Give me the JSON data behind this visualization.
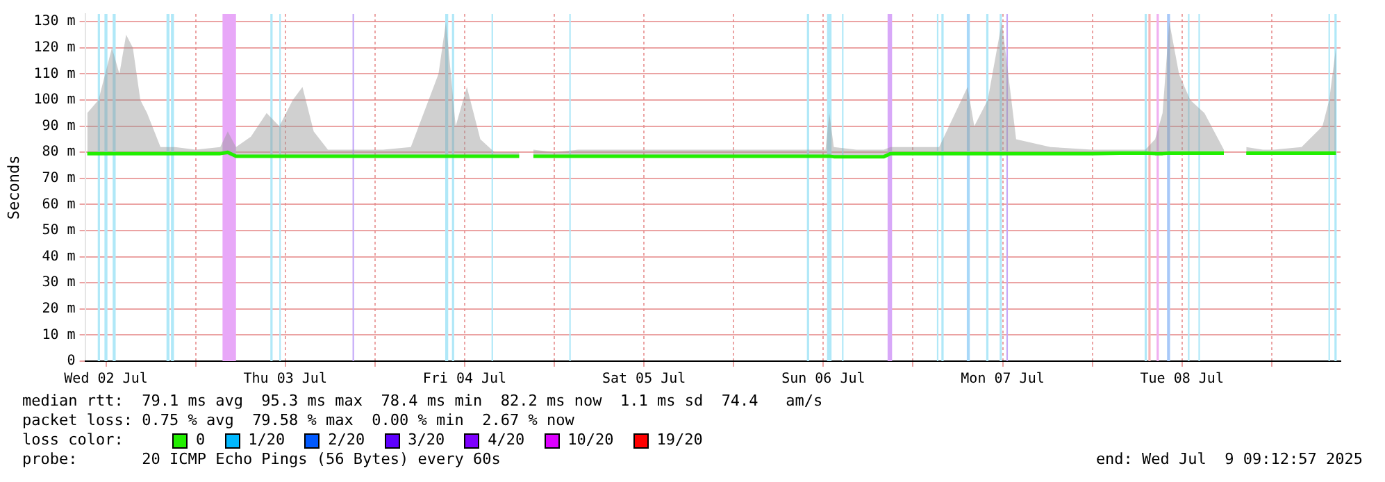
{
  "chart_data": {
    "type": "line",
    "ylabel": "Seconds",
    "legend_title": "loss color:",
    "legend": "bottom",
    "grid": true,
    "xlim": [
      "2025-07-02T09:13",
      "2025-07-09T09:13"
    ],
    "xticks": [
      {
        "value": "2025-07-02T12:00",
        "label": "Wed 02 Jul"
      },
      {
        "value": "2025-07-03T00:00",
        "label": null
      },
      {
        "value": "2025-07-03T12:00",
        "label": "Thu 03 Jul"
      },
      {
        "value": "2025-07-04T00:00",
        "label": null
      },
      {
        "value": "2025-07-04T12:00",
        "label": "Fri 04 Jul"
      },
      {
        "value": "2025-07-05T00:00",
        "label": null
      },
      {
        "value": "2025-07-05T12:00",
        "label": "Sat 05 Jul"
      },
      {
        "value": "2025-07-06T00:00",
        "label": null
      },
      {
        "value": "2025-07-06T12:00",
        "label": "Sun 06 Jul"
      },
      {
        "value": "2025-07-07T00:00",
        "label": null
      },
      {
        "value": "2025-07-07T12:00",
        "label": "Mon 07 Jul"
      },
      {
        "value": "2025-07-08T00:00",
        "label": null
      },
      {
        "value": "2025-07-08T12:00",
        "label": "Tue 08 Jul"
      },
      {
        "value": "2025-07-09T00:00",
        "label": null
      }
    ],
    "ylim": [
      0,
      133
    ],
    "yticks": [
      0,
      {
        "value": 10,
        "label": "10 m"
      },
      {
        "value": 20,
        "label": "20 m"
      },
      {
        "value": 30,
        "label": "30 m"
      },
      {
        "value": 40,
        "label": "40 m"
      },
      {
        "value": 50,
        "label": "50 m"
      },
      {
        "value": 60,
        "label": "60 m"
      },
      {
        "value": 70,
        "label": "70 m"
      },
      {
        "value": 80,
        "label": "80 m"
      },
      {
        "value": 90,
        "label": "90 m"
      },
      {
        "value": 100,
        "label": "100 m"
      },
      {
        "value": 110,
        "label": "110 m"
      },
      {
        "value": 120,
        "label": "120 m"
      },
      {
        "value": 130,
        "label": "130 m"
      }
    ],
    "series": [
      {
        "name": "0",
        "color": "#22ee00",
        "x": [
          "2025-07-02T09:30",
          "2025-07-02T11:00",
          "2025-07-02T12:48",
          "2025-07-02T13:48",
          "2025-07-02T14:42",
          "2025-07-02T15:36",
          "2025-07-02T16:36",
          "2025-07-02T17:30",
          "2025-07-02T19:18",
          "2025-07-02T21:12",
          "2025-07-03T00:00",
          "2025-07-03T03:18",
          "2025-07-03T04:18",
          "2025-07-03T05:24",
          "2025-07-03T07:24",
          "2025-07-03T09:30",
          "2025-07-03T11:12",
          "2025-07-03T13:00",
          "2025-07-03T14:18",
          "2025-07-03T15:48",
          "2025-07-03T17:42",
          "2025-07-03T21:24",
          "2025-07-04T01:06",
          "2025-07-04T04:48",
          "2025-07-04T08:30",
          "2025-07-04T09:30",
          "2025-07-04T10:48",
          "2025-07-04T12:18",
          "2025-07-04T14:06",
          "2025-07-04T16:00",
          "2025-07-04T17:54",
          "2025-07-04T19:18",
          "2025-07-04T20:30",
          "2025-07-04T21:12",
          "2025-07-05T00:00",
          "2025-07-05T03:12",
          "2025-07-05T06:54",
          "2025-07-05T10:36",
          "2025-07-05T14:18",
          "2025-07-05T18:00",
          "2025-07-05T21:48",
          "2025-07-06T01:30",
          "2025-07-06T05:12",
          "2025-07-06T08:54",
          "2025-07-06T12:18",
          "2025-07-06T12:48",
          "2025-07-06T13:24",
          "2025-07-06T16:24",
          "2025-07-06T20:06",
          "2025-07-06T21:00",
          "2025-07-06T23:48",
          "2025-07-07T03:30",
          "2025-07-07T07:18",
          "2025-07-07T08:12",
          "2025-07-07T10:00",
          "2025-07-07T11:54",
          "2025-07-07T13:48",
          "2025-07-07T18:24",
          "2025-07-08T00:00",
          "2025-07-08T03:42",
          "2025-07-08T07:06",
          "2025-07-08T08:24",
          "2025-07-08T09:24",
          "2025-07-08T10:18",
          "2025-07-08T11:36",
          "2025-07-08T13:06",
          "2025-07-08T15:00",
          "2025-07-08T17:36",
          "2025-07-08T18:42",
          "2025-07-08T20:36",
          "2025-07-08T22:48",
          "2025-07-09T00:18",
          "2025-07-09T04:00",
          "2025-07-09T06:48",
          "2025-07-09T07:42",
          "2025-07-09T08:36"
        ],
        "values": [
          79.5,
          79.5,
          79.5,
          79.5,
          79.5,
          79.5,
          79.5,
          79.5,
          79.5,
          79.5,
          79.5,
          79.5,
          80,
          78.5,
          78.5,
          78.5,
          78.5,
          78.5,
          78.5,
          78.5,
          78.5,
          78.5,
          78.5,
          78.5,
          78.5,
          78.5,
          78.5,
          78.5,
          78.5,
          78.5,
          78.5,
          78.5,
          null,
          78.5,
          78.5,
          78.5,
          78.5,
          78.5,
          78.5,
          78.5,
          78.5,
          78.5,
          78.5,
          78.5,
          78.5,
          78.5,
          78.3,
          78.3,
          78.3,
          79.5,
          79.5,
          79.5,
          79.5,
          79.5,
          79.5,
          79.5,
          79.5,
          79.5,
          79.5,
          79.7,
          79.7,
          79.5,
          79.5,
          79.7,
          79.7,
          79.7,
          79.7,
          79.7,
          null,
          79.7,
          79.7,
          79.7,
          79.7,
          79.7,
          79.7,
          79.7
        ],
        "lower": [
          79,
          79,
          79,
          79,
          79,
          79,
          79,
          79,
          79,
          79,
          79,
          79,
          79,
          78,
          78,
          78,
          78,
          78,
          78,
          78,
          78,
          78,
          78,
          78,
          78,
          78,
          78,
          78,
          78,
          78,
          78,
          78,
          null,
          78,
          78,
          78,
          78,
          78,
          78,
          78,
          78,
          78,
          78,
          78,
          78,
          78,
          78,
          78,
          78,
          79,
          79,
          79,
          79,
          79,
          79,
          79,
          79,
          79,
          79,
          79,
          79,
          79,
          79,
          79,
          79,
          79,
          79,
          79,
          null,
          79,
          79,
          79,
          79,
          79,
          79,
          79
        ],
        "upper": [
          95,
          100,
          120,
          110,
          125,
          120,
          100,
          95,
          82,
          82,
          81,
          82,
          88,
          82,
          86,
          95,
          90,
          100,
          105,
          88,
          81,
          81,
          81,
          82,
          110,
          130,
          90,
          105,
          85,
          80,
          80,
          80,
          null,
          81,
          80,
          81,
          81,
          81,
          81,
          81,
          81,
          81,
          81,
          81,
          81,
          95,
          82,
          81,
          81,
          82,
          82,
          82,
          105,
          90,
          100,
          130,
          85,
          82,
          81,
          81,
          81,
          85,
          95,
          130,
          110,
          100,
          95,
          81,
          null,
          82,
          81,
          81,
          82,
          90,
          100,
          120
        ]
      },
      {
        "name": "1/20",
        "color": "#00b8ff"
      },
      {
        "name": "2/20",
        "color": "#0059ff"
      },
      {
        "name": "3/20",
        "color": "#5e00ff"
      },
      {
        "name": "4/20",
        "color": "#7e00ff"
      },
      {
        "name": "10/20",
        "color": "#dd00ff"
      },
      {
        "name": "19/20",
        "color": "#ff0000"
      }
    ],
    "bands": [
      {
        "axis": "x",
        "from": "2025-07-02T10:54",
        "to": "2025-07-02T11:12",
        "color": "#b0e8f8"
      },
      {
        "axis": "x",
        "from": "2025-07-02T11:48",
        "to": "2025-07-02T12:12",
        "color": "#b0e8f8"
      },
      {
        "axis": "x",
        "from": "2025-07-02T12:54",
        "to": "2025-07-02T13:18",
        "color": "#b0e8f8"
      },
      {
        "axis": "x",
        "from": "2025-07-02T20:06",
        "to": "2025-07-02T20:30",
        "color": "#b0e8f8"
      },
      {
        "axis": "x",
        "from": "2025-07-02T20:42",
        "to": "2025-07-02T21:06",
        "color": "#b0e8f8"
      },
      {
        "axis": "x",
        "from": "2025-07-03T03:36",
        "to": "2025-07-03T05:24",
        "color": "#e8a8f8"
      },
      {
        "axis": "x",
        "from": "2025-07-03T10:00",
        "to": "2025-07-03T10:18",
        "color": "#b0e8f8"
      },
      {
        "axis": "x",
        "from": "2025-07-03T11:12",
        "to": "2025-07-03T11:24",
        "color": "#b0e8f8"
      },
      {
        "axis": "x",
        "from": "2025-07-03T21:00",
        "to": "2025-07-03T21:12",
        "color": "#c4a8f8"
      },
      {
        "axis": "x",
        "from": "2025-07-04T09:24",
        "to": "2025-07-04T09:48",
        "color": "#b0e8f8"
      },
      {
        "axis": "x",
        "from": "2025-07-04T10:18",
        "to": "2025-07-04T10:36",
        "color": "#b0e8f8"
      },
      {
        "axis": "x",
        "from": "2025-07-04T15:36",
        "to": "2025-07-04T15:48",
        "color": "#b0e8f8"
      },
      {
        "axis": "x",
        "from": "2025-07-05T02:00",
        "to": "2025-07-05T02:12",
        "color": "#b0e8f8"
      },
      {
        "axis": "x",
        "from": "2025-07-06T09:48",
        "to": "2025-07-06T10:06",
        "color": "#b0e8f8"
      },
      {
        "axis": "x",
        "from": "2025-07-06T12:30",
        "to": "2025-07-06T13:06",
        "color": "#b0e8f8"
      },
      {
        "axis": "x",
        "from": "2025-07-06T14:30",
        "to": "2025-07-06T14:42",
        "color": "#b0e8f8"
      },
      {
        "axis": "x",
        "from": "2025-07-06T20:36",
        "to": "2025-07-06T21:12",
        "color": "#d8a8f8"
      },
      {
        "axis": "x",
        "from": "2025-07-07T03:12",
        "to": "2025-07-07T03:24",
        "color": "#b0e8f8"
      },
      {
        "axis": "x",
        "from": "2025-07-07T03:48",
        "to": "2025-07-07T04:06",
        "color": "#b0e8f8"
      },
      {
        "axis": "x",
        "from": "2025-07-07T07:12",
        "to": "2025-07-07T07:36",
        "color": "#a8d8f8"
      },
      {
        "axis": "x",
        "from": "2025-07-07T09:48",
        "to": "2025-07-07T10:06",
        "color": "#b0e8f8"
      },
      {
        "axis": "x",
        "from": "2025-07-07T11:36",
        "to": "2025-07-07T11:54",
        "color": "#b0e8f8"
      },
      {
        "axis": "x",
        "from": "2025-07-07T12:30",
        "to": "2025-07-07T12:42",
        "color": "#c4a8f8"
      },
      {
        "axis": "x",
        "from": "2025-07-08T07:00",
        "to": "2025-07-08T07:18",
        "color": "#b0e8f8"
      },
      {
        "axis": "x",
        "from": "2025-07-08T07:30",
        "to": "2025-07-08T07:48",
        "color": "#f8b8b8"
      },
      {
        "axis": "x",
        "from": "2025-07-08T08:36",
        "to": "2025-07-08T08:54",
        "color": "#f0b0f0"
      },
      {
        "axis": "x",
        "from": "2025-07-08T10:00",
        "to": "2025-07-08T10:24",
        "color": "#a8c8f8"
      },
      {
        "axis": "x",
        "from": "2025-07-08T12:48",
        "to": "2025-07-08T13:00",
        "color": "#b0e8f8"
      },
      {
        "axis": "x",
        "from": "2025-07-08T14:12",
        "to": "2025-07-08T14:24",
        "color": "#b0e8f8"
      },
      {
        "axis": "x",
        "from": "2025-07-09T07:36",
        "to": "2025-07-09T07:48",
        "color": "#b0e8f8"
      },
      {
        "axis": "x",
        "from": "2025-07-09T08:24",
        "to": "2025-07-09T08:42",
        "color": "#b0e8f8"
      }
    ],
    "annotations": [
      "median rtt:  79.1 ms avg  95.3 ms max  78.4 ms min  82.2 ms now  1.1 ms sd  74.4   am/s",
      "packet loss: 0.75 % avg  79.58 % max  0.00 % min  2.67 % now",
      "probe:       20 ICMP Echo Pings (56 Bytes) every 60s",
      "end: Wed Jul  9 09:12:57 2025"
    ]
  }
}
